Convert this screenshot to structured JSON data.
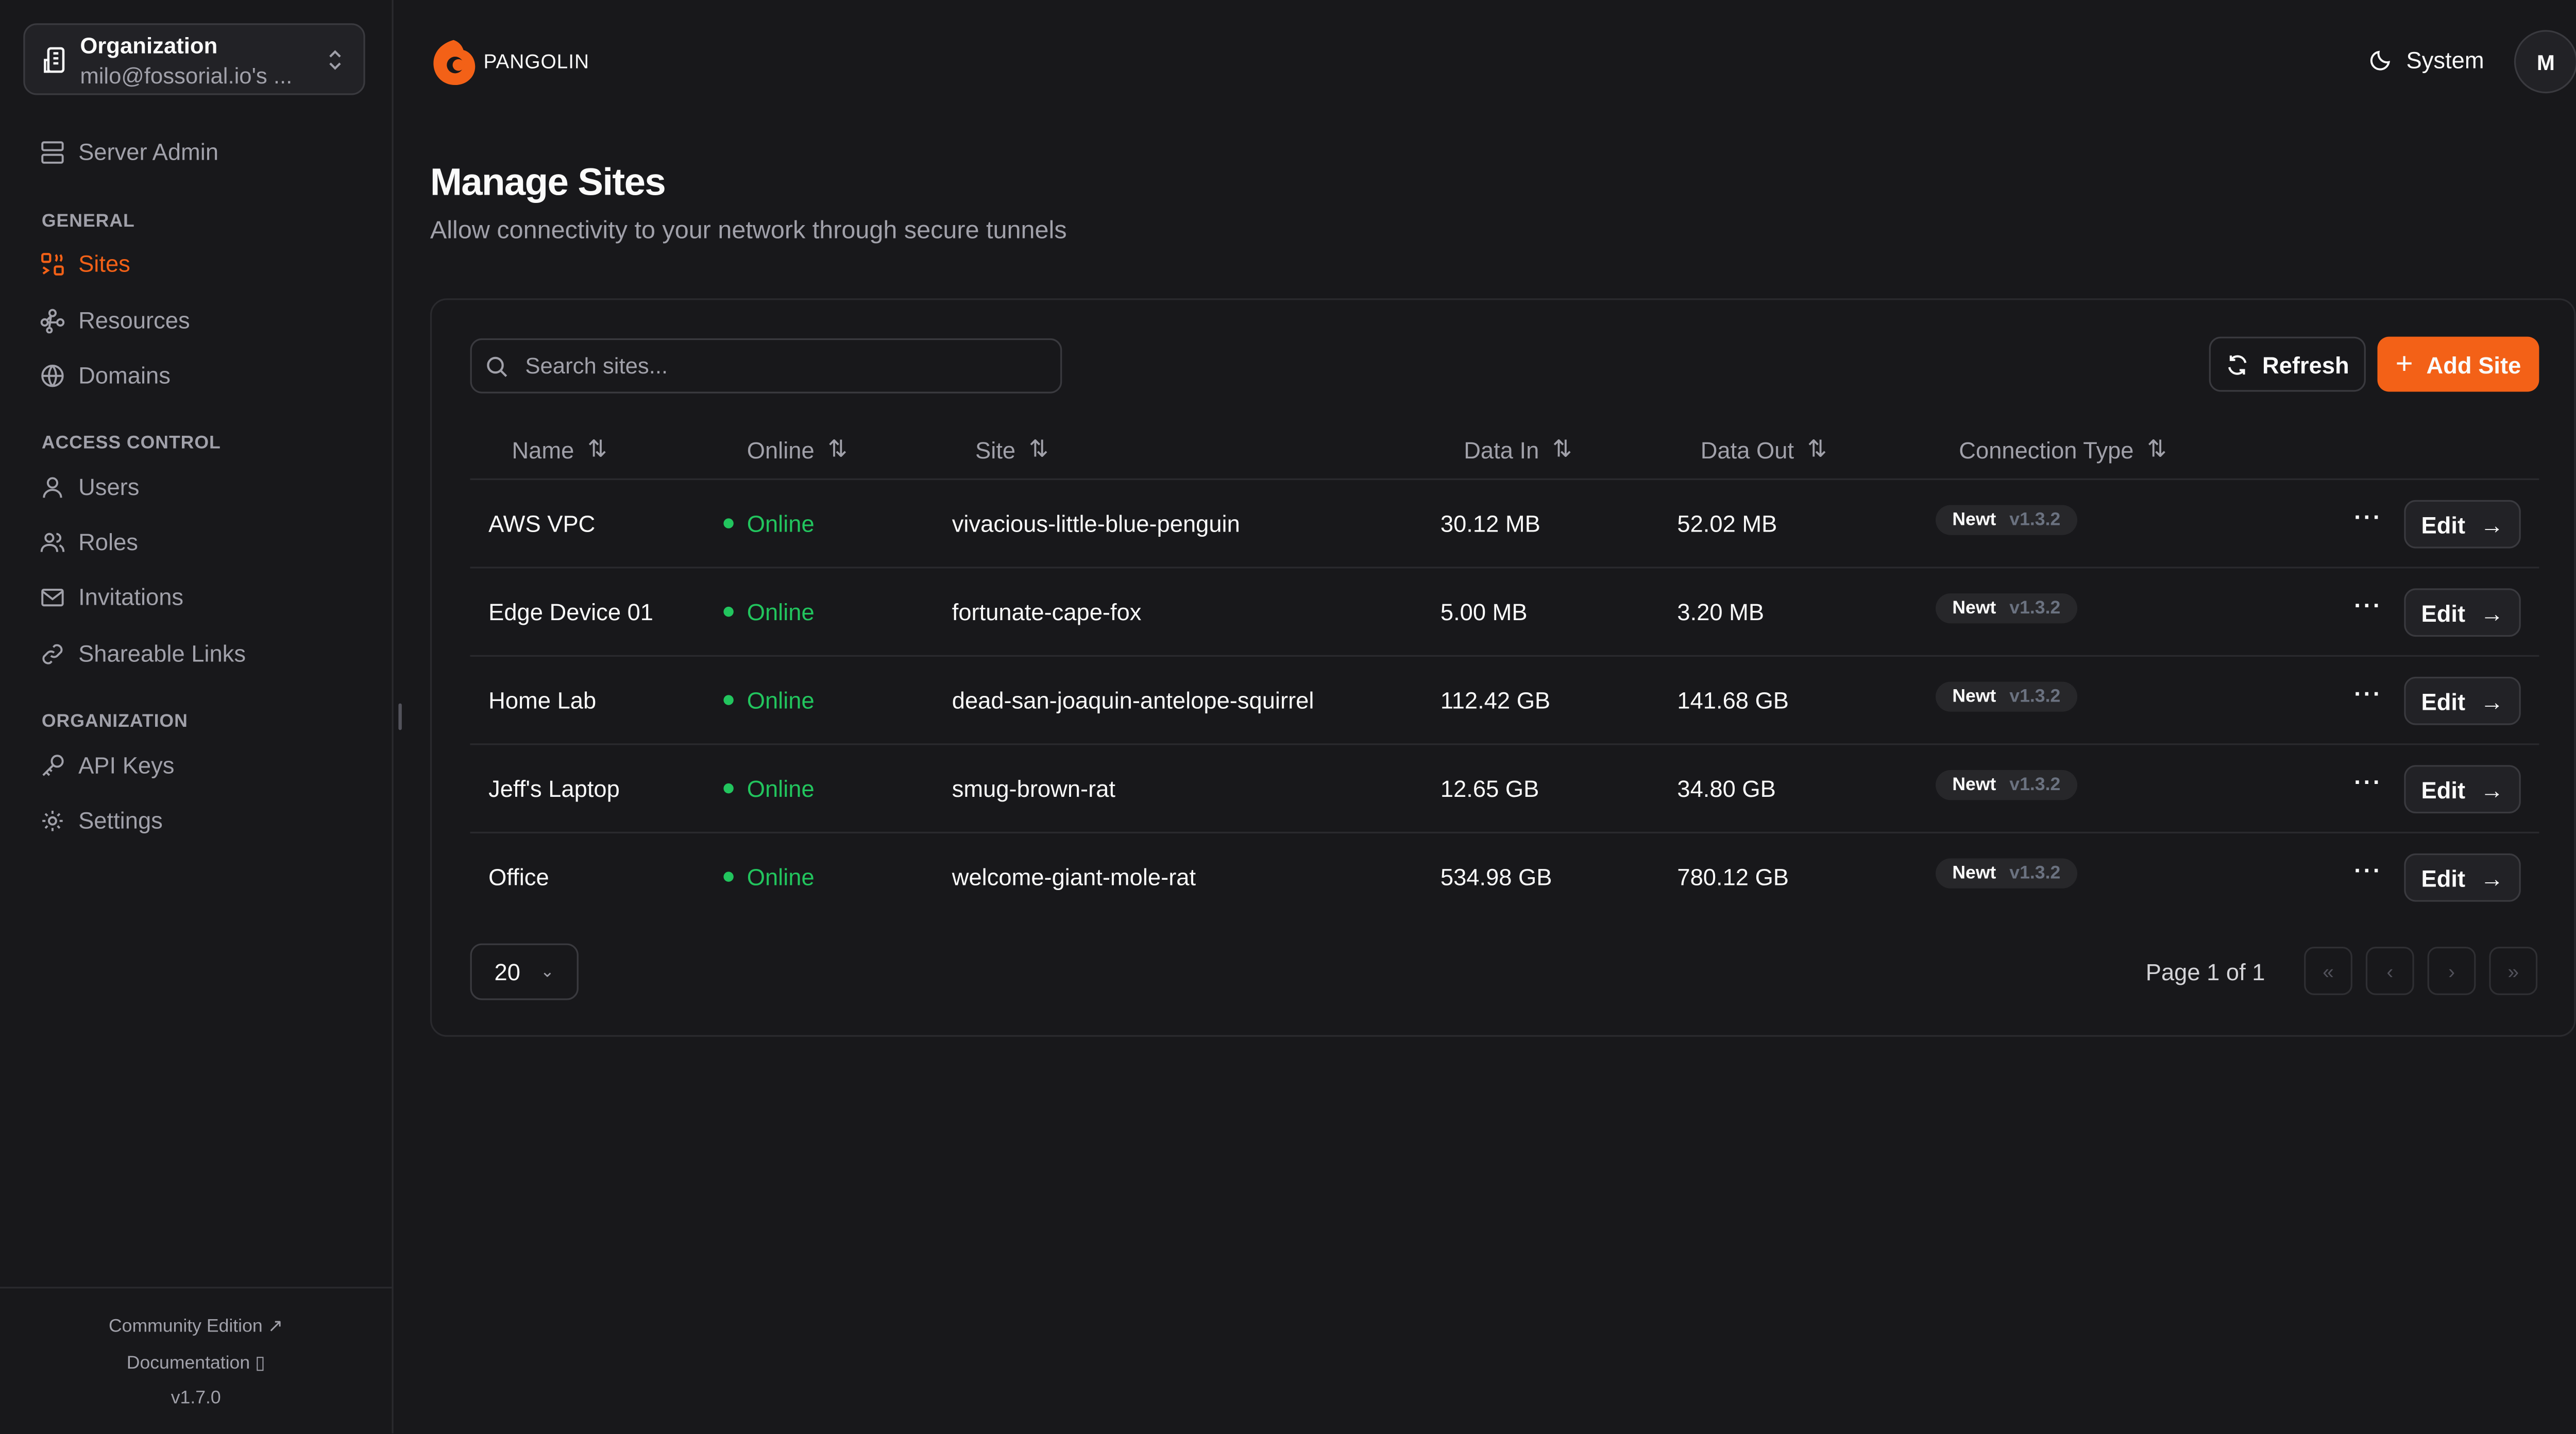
{
  "sidebar": {
    "org": {
      "label": "Organization",
      "value": "milo@fossorial.io's ..."
    },
    "server_admin": "Server Admin",
    "sections": {
      "general": "GENERAL",
      "access": "ACCESS CONTROL",
      "organization": "ORGANIZATION"
    },
    "items": {
      "sites": "Sites",
      "resources": "Resources",
      "domains": "Domains",
      "users": "Users",
      "roles": "Roles",
      "invitations": "Invitations",
      "links": "Shareable Links",
      "api": "API Keys",
      "settings": "Settings"
    },
    "footer": {
      "edition": "Community Edition",
      "docs": "Documentation",
      "version": "v1.7.0"
    }
  },
  "header": {
    "brand": "PANGOLIN",
    "theme": "System",
    "avatar": "M",
    "accent": "#f36117"
  },
  "page": {
    "title": "Manage Sites",
    "subtitle": "Allow connectivity to your network through secure tunnels"
  },
  "toolbar": {
    "search_placeholder": "Search sites...",
    "refresh": "Refresh",
    "add": "Add Site"
  },
  "table": {
    "columns": [
      "Name",
      "Online",
      "Site",
      "Data In",
      "Data Out",
      "Connection Type"
    ],
    "rows": [
      {
        "name": "AWS VPC",
        "online": "Online",
        "site": "vivacious-little-blue-penguin",
        "in": "30.12 MB",
        "out": "52.02 MB",
        "type": "Newt",
        "ver": "v1.3.2"
      },
      {
        "name": "Edge Device 01",
        "online": "Online",
        "site": "fortunate-cape-fox",
        "in": "5.00 MB",
        "out": "3.20 MB",
        "type": "Newt",
        "ver": "v1.3.2"
      },
      {
        "name": "Home Lab",
        "online": "Online",
        "site": "dead-san-joaquin-antelope-squirrel",
        "in": "112.42 GB",
        "out": "141.68 GB",
        "type": "Newt",
        "ver": "v1.3.2"
      },
      {
        "name": "Jeff's Laptop",
        "online": "Online",
        "site": "smug-brown-rat",
        "in": "12.65 GB",
        "out": "34.80 GB",
        "type": "Newt",
        "ver": "v1.3.2"
      },
      {
        "name": "Office",
        "online": "Online",
        "site": "welcome-giant-mole-rat",
        "in": "534.98 GB",
        "out": "780.12 GB",
        "type": "Newt",
        "ver": "v1.3.2"
      }
    ],
    "edit_label": "Edit"
  },
  "pagination": {
    "page_size": "20",
    "info": "Page 1 of 1"
  }
}
